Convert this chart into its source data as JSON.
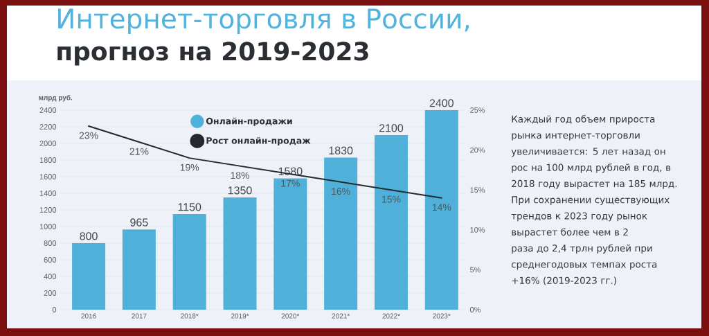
{
  "chart_data": {
    "type": "bar",
    "title": "Интернет-торговля в России,",
    "subtitle": "прогноз на 2019-2023",
    "ylabel": "млрд руб.",
    "categories": [
      "2016",
      "2017",
      "2018*",
      "2019*",
      "2020*",
      "2021*",
      "2022*",
      "2023*"
    ],
    "series": [
      {
        "name": "Онлайн-продажи",
        "color": "#4fb1d9",
        "values": [
          800,
          965,
          1150,
          1350,
          1580,
          1830,
          2100,
          2400
        ],
        "value_labels": [
          "800",
          "965",
          "1150",
          "1350",
          "1580",
          "1830",
          "2100",
          "2400"
        ]
      },
      {
        "name": "Рост онлайн-продаж",
        "type": "line",
        "axis": "y2",
        "color": "#23292e",
        "line_style": "solid",
        "values": [
          23,
          21,
          19,
          18,
          17,
          16,
          15,
          14
        ],
        "value_labels": [
          "23%",
          "21%",
          "19%",
          "18%",
          "17%",
          "16%",
          "15%",
          "14%"
        ]
      }
    ],
    "ylim": [
      0,
      2400
    ],
    "yticks": [
      0,
      200,
      400,
      600,
      800,
      1000,
      1200,
      1400,
      1600,
      1800,
      2000,
      2200,
      2400
    ],
    "y2lim": [
      0,
      25
    ],
    "y2ticks": [
      {
        "value": 0,
        "label": "0%"
      },
      {
        "value": 5,
        "label": "5%"
      },
      {
        "value": 10,
        "label": "10%"
      },
      {
        "value": 15,
        "label": "15%"
      },
      {
        "value": 20,
        "label": "20%"
      },
      {
        "value": 25,
        "label": "25%"
      }
    ],
    "grid": "y",
    "legend": "top",
    "annotations": [
      "Каждый год объем прироста рынка интернет-торговли увеличивается: 5 лет назад он рос на 100 млрд рублей в год, в 2018 году вырастет на 185 млрд.",
      "При сохранении существующих трендов  к 2023 году рынок вырастет более чем в 2 раза до  2,4 трлн рублей при среднегодовых темпах роста +16% (2019-2023 гг.)"
    ]
  }
}
